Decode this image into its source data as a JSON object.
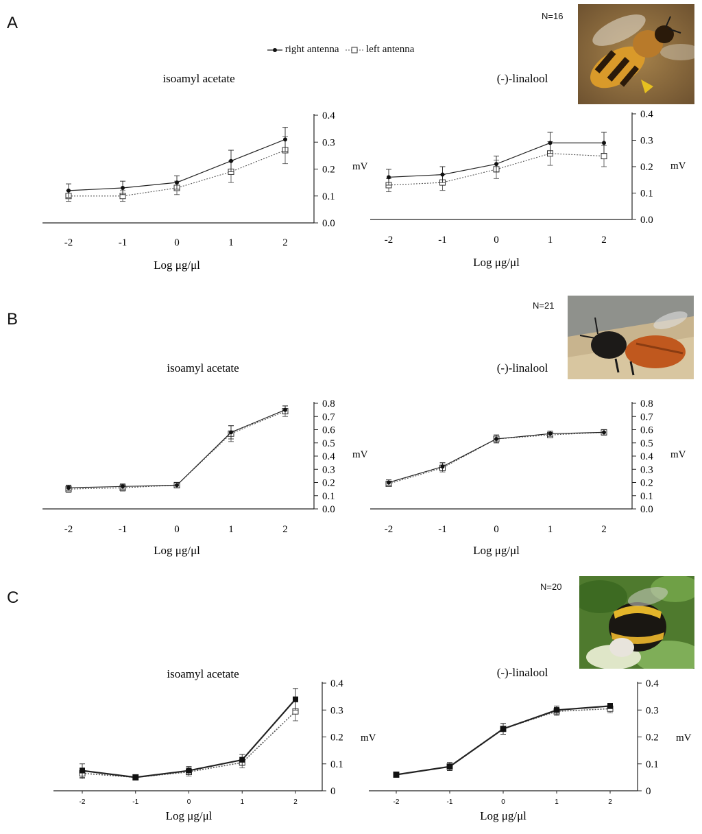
{
  "legend": {
    "right": "right antenna",
    "left": "left antenna"
  },
  "panels": [
    {
      "letter": "A",
      "n": "N=16",
      "photo": "honeybee-photo-icon"
    },
    {
      "letter": "B",
      "n": "N=21",
      "photo": "mason-bee-photo-icon"
    },
    {
      "letter": "C",
      "n": "N=20",
      "photo": "bumblebee-photo-icon"
    }
  ],
  "chart_data": [
    {
      "id": "A1",
      "panel": "A",
      "type": "line",
      "title": "isoamyl acetate",
      "xlabel": "Log μg/μl",
      "ylabel": "mV",
      "x": [
        -2,
        -1,
        0,
        1,
        2
      ],
      "yticks": [
        "0.0",
        "0.1",
        "0.2",
        "0.3",
        "0.4"
      ],
      "ylim": [
        0,
        0.4
      ],
      "series": [
        {
          "name": "right antenna",
          "values": [
            0.12,
            0.13,
            0.15,
            0.23,
            0.31
          ],
          "err": [
            0.025,
            0.025,
            0.025,
            0.04,
            0.045
          ]
        },
        {
          "name": "left antenna",
          "values": [
            0.1,
            0.1,
            0.13,
            0.19,
            0.27
          ],
          "err": [
            0.02,
            0.02,
            0.025,
            0.04,
            0.05
          ]
        }
      ]
    },
    {
      "id": "A2",
      "panel": "A",
      "type": "line",
      "title": "(-)-linalool",
      "xlabel": "Log μg/μl",
      "ylabel": "mV",
      "x": [
        -2,
        -1,
        0,
        1,
        2
      ],
      "yticks": [
        "0.0",
        "0.1",
        "0.2",
        "0.3",
        "0.4"
      ],
      "ylim": [
        0,
        0.4
      ],
      "series": [
        {
          "name": "right antenna",
          "values": [
            0.16,
            0.17,
            0.21,
            0.29,
            0.29
          ],
          "err": [
            0.03,
            0.03,
            0.03,
            0.04,
            0.04
          ]
        },
        {
          "name": "left antenna",
          "values": [
            0.13,
            0.14,
            0.19,
            0.25,
            0.24
          ],
          "err": [
            0.025,
            0.03,
            0.035,
            0.045,
            0.04
          ]
        }
      ]
    },
    {
      "id": "B1",
      "panel": "B",
      "type": "line",
      "title": "isoamyl acetate",
      "xlabel": "Log μg/μl",
      "ylabel": "mV",
      "x": [
        -2,
        -1,
        0,
        1,
        2
      ],
      "yticks": [
        "0.0",
        "0.1",
        "0.2",
        "0.3",
        "0.4",
        "0.5",
        "0.6",
        "0.7",
        "0.8"
      ],
      "ylim": [
        0,
        0.8
      ],
      "series": [
        {
          "name": "right antenna",
          "values": [
            0.16,
            0.17,
            0.18,
            0.58,
            0.75
          ],
          "err": [
            0.02,
            0.02,
            0.02,
            0.05,
            0.03
          ]
        },
        {
          "name": "left antenna",
          "values": [
            0.15,
            0.16,
            0.18,
            0.57,
            0.74
          ],
          "err": [
            0.025,
            0.025,
            0.02,
            0.06,
            0.04
          ]
        }
      ]
    },
    {
      "id": "B2",
      "panel": "B",
      "type": "line",
      "title": "(-)-linalool",
      "xlabel": "Log μg/μl",
      "ylabel": "mV",
      "x": [
        -2,
        -1,
        0,
        1,
        2
      ],
      "yticks": [
        "0.0",
        "0.1",
        "0.2",
        "0.3",
        "0.4",
        "0.5",
        "0.6",
        "0.7",
        "0.8"
      ],
      "ylim": [
        0,
        0.8
      ],
      "series": [
        {
          "name": "right antenna",
          "values": [
            0.2,
            0.32,
            0.53,
            0.57,
            0.58
          ],
          "err": [
            0.02,
            0.03,
            0.03,
            0.02,
            0.02
          ]
        },
        {
          "name": "left antenna",
          "values": [
            0.19,
            0.31,
            0.53,
            0.56,
            0.58
          ],
          "err": [
            0.02,
            0.03,
            0.03,
            0.02,
            0.02
          ]
        }
      ]
    },
    {
      "id": "C1",
      "panel": "C",
      "type": "line",
      "title": "isoamyl acetate",
      "xlabel": "Log μg/μl",
      "ylabel": "mV",
      "x": [
        -2,
        -1,
        0,
        1,
        2
      ],
      "yticks": [
        "0",
        "0.1",
        "0.2",
        "0.3",
        "0.4"
      ],
      "ylim": [
        0,
        0.4
      ],
      "series": [
        {
          "name": "right antenna",
          "values": [
            0.075,
            0.05,
            0.075,
            0.115,
            0.34
          ],
          "err": [
            0.025,
            0.01,
            0.015,
            0.02,
            0.04
          ]
        },
        {
          "name": "left antenna",
          "values": [
            0.065,
            0.05,
            0.07,
            0.105,
            0.295
          ],
          "err": [
            0.02,
            0.01,
            0.015,
            0.02,
            0.035
          ]
        }
      ]
    },
    {
      "id": "C2",
      "panel": "C",
      "type": "line",
      "title": "(-)-linalool",
      "xlabel": "Log μg/μl",
      "ylabel": "mV",
      "x": [
        -2,
        -1,
        0,
        1,
        2
      ],
      "yticks": [
        "0",
        "0.1",
        "0.2",
        "0.3",
        "0.4"
      ],
      "ylim": [
        0,
        0.4
      ],
      "series": [
        {
          "name": "right antenna",
          "values": [
            0.06,
            0.09,
            0.23,
            0.3,
            0.315
          ],
          "err": [
            0.01,
            0.015,
            0.02,
            0.015,
            0.01
          ]
        },
        {
          "name": "left antenna",
          "values": [
            0.06,
            0.09,
            0.23,
            0.295,
            0.305
          ],
          "err": [
            0.01,
            0.015,
            0.02,
            0.015,
            0.015
          ]
        }
      ]
    }
  ]
}
